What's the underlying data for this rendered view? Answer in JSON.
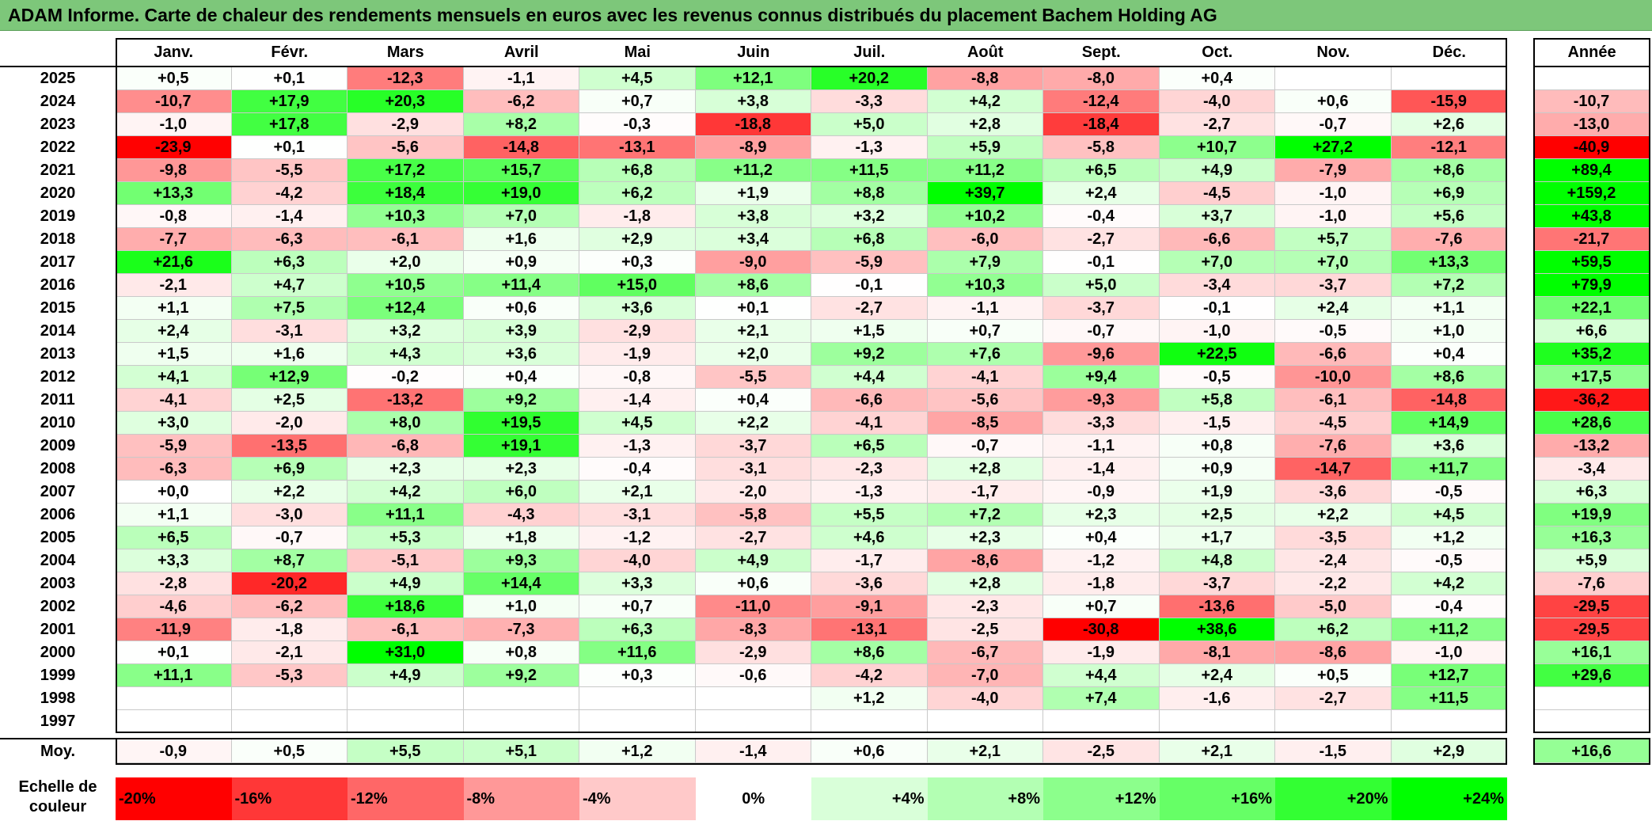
{
  "title": "ADAM Informe. Carte de chaleur des rendements mensuels en euros avec les revenus connus distribués du placement Bachem Holding AG",
  "chart_data": {
    "type": "heatmap",
    "months": [
      "Janv.",
      "Févr.",
      "Mars",
      "Avril",
      "Mai",
      "Juin",
      "Juil.",
      "Août",
      "Sept.",
      "Oct.",
      "Nov.",
      "Déc."
    ],
    "annual_header": "Année",
    "rows": [
      {
        "year": "2025",
        "values": [
          "+0,5",
          "+0,1",
          "-12,3",
          "-1,1",
          "+4,5",
          "+12,1",
          "+20,2",
          "-8,8",
          "-8,0",
          "+0,4",
          "",
          ""
        ],
        "annual": ""
      },
      {
        "year": "2024",
        "values": [
          "-10,7",
          "+17,9",
          "+20,3",
          "-6,2",
          "+0,7",
          "+3,8",
          "-3,3",
          "+4,2",
          "-12,4",
          "-4,0",
          "+0,6",
          "-15,9"
        ],
        "annual": "-10,7"
      },
      {
        "year": "2023",
        "values": [
          "-1,0",
          "+17,8",
          "-2,9",
          "+8,2",
          "-0,3",
          "-18,8",
          "+5,0",
          "+2,8",
          "-18,4",
          "-2,7",
          "-0,7",
          "+2,6"
        ],
        "annual": "-13,0"
      },
      {
        "year": "2022",
        "values": [
          "-23,9",
          "+0,1",
          "-5,6",
          "-14,8",
          "-13,1",
          "-8,9",
          "-1,3",
          "+5,9",
          "-5,8",
          "+10,7",
          "+27,2",
          "-12,1"
        ],
        "annual": "-40,9"
      },
      {
        "year": "2021",
        "values": [
          "-9,8",
          "-5,5",
          "+17,2",
          "+15,7",
          "+6,8",
          "+11,2",
          "+11,5",
          "+11,2",
          "+6,5",
          "+4,9",
          "-7,9",
          "+8,6"
        ],
        "annual": "+89,4"
      },
      {
        "year": "2020",
        "values": [
          "+13,3",
          "-4,2",
          "+18,4",
          "+19,0",
          "+6,2",
          "+1,9",
          "+8,8",
          "+39,7",
          "+2,4",
          "-4,5",
          "-1,0",
          "+6,9"
        ],
        "annual": "+159,2"
      },
      {
        "year": "2019",
        "values": [
          "-0,8",
          "-1,4",
          "+10,3",
          "+7,0",
          "-1,8",
          "+3,8",
          "+3,2",
          "+10,2",
          "-0,4",
          "+3,7",
          "-1,0",
          "+5,6"
        ],
        "annual": "+43,8"
      },
      {
        "year": "2018",
        "values": [
          "-7,7",
          "-6,3",
          "-6,1",
          "+1,6",
          "+2,9",
          "+3,4",
          "+6,8",
          "-6,0",
          "-2,7",
          "-6,6",
          "+5,7",
          "-7,6"
        ],
        "annual": "-21,7"
      },
      {
        "year": "2017",
        "values": [
          "+21,6",
          "+6,3",
          "+2,0",
          "+0,9",
          "+0,3",
          "-9,0",
          "-5,9",
          "+7,9",
          "-0,1",
          "+7,0",
          "+7,0",
          "+13,3"
        ],
        "annual": "+59,5"
      },
      {
        "year": "2016",
        "values": [
          "-2,1",
          "+4,7",
          "+10,5",
          "+11,4",
          "+15,0",
          "+8,6",
          "-0,1",
          "+10,3",
          "+5,0",
          "-3,4",
          "-3,7",
          "+7,2"
        ],
        "annual": "+79,9"
      },
      {
        "year": "2015",
        "values": [
          "+1,1",
          "+7,5",
          "+12,4",
          "+0,6",
          "+3,6",
          "+0,1",
          "-2,7",
          "-1,1",
          "-3,7",
          "-0,1",
          "+2,4",
          "+1,1"
        ],
        "annual": "+22,1"
      },
      {
        "year": "2014",
        "values": [
          "+2,4",
          "-3,1",
          "+3,2",
          "+3,9",
          "-2,9",
          "+2,1",
          "+1,5",
          "+0,7",
          "-0,7",
          "-1,0",
          "-0,5",
          "+1,0"
        ],
        "annual": "+6,6"
      },
      {
        "year": "2013",
        "values": [
          "+1,5",
          "+1,6",
          "+4,3",
          "+3,6",
          "-1,9",
          "+2,0",
          "+9,2",
          "+7,6",
          "-9,6",
          "+22,5",
          "-6,6",
          "+0,4"
        ],
        "annual": "+35,2"
      },
      {
        "year": "2012",
        "values": [
          "+4,1",
          "+12,9",
          "-0,2",
          "+0,4",
          "-0,8",
          "-5,5",
          "+4,4",
          "-4,1",
          "+9,4",
          "-0,5",
          "-10,0",
          "+8,6"
        ],
        "annual": "+17,5"
      },
      {
        "year": "2011",
        "values": [
          "-4,1",
          "+2,5",
          "-13,2",
          "+9,2",
          "-1,4",
          "+0,4",
          "-6,6",
          "-5,6",
          "-9,3",
          "+5,8",
          "-6,1",
          "-14,8"
        ],
        "annual": "-36,2"
      },
      {
        "year": "2010",
        "values": [
          "+3,0",
          "-2,0",
          "+8,0",
          "+19,5",
          "+4,5",
          "+2,2",
          "-4,1",
          "-8,5",
          "-3,3",
          "-1,5",
          "-4,5",
          "+14,9"
        ],
        "annual": "+28,6"
      },
      {
        "year": "2009",
        "values": [
          "-5,9",
          "-13,5",
          "-6,8",
          "+19,1",
          "-1,3",
          "-3,7",
          "+6,5",
          "-0,7",
          "-1,1",
          "+0,8",
          "-7,6",
          "+3,6"
        ],
        "annual": "-13,2"
      },
      {
        "year": "2008",
        "values": [
          "-6,3",
          "+6,9",
          "+2,3",
          "+2,3",
          "-0,4",
          "-3,1",
          "-2,3",
          "+2,8",
          "-1,4",
          "+0,9",
          "-14,7",
          "+11,7"
        ],
        "annual": "-3,4"
      },
      {
        "year": "2007",
        "values": [
          "+0,0",
          "+2,2",
          "+4,2",
          "+6,0",
          "+2,1",
          "-2,0",
          "-1,3",
          "-1,7",
          "-0,9",
          "+1,9",
          "-3,6",
          "-0,5"
        ],
        "annual": "+6,3"
      },
      {
        "year": "2006",
        "values": [
          "+1,1",
          "-3,0",
          "+11,1",
          "-4,3",
          "-3,1",
          "-5,8",
          "+5,5",
          "+7,2",
          "+2,3",
          "+2,5",
          "+2,2",
          "+4,5"
        ],
        "annual": "+19,9"
      },
      {
        "year": "2005",
        "values": [
          "+6,5",
          "-0,7",
          "+5,3",
          "+1,8",
          "-1,2",
          "-2,7",
          "+4,6",
          "+2,3",
          "+0,4",
          "+1,7",
          "-3,5",
          "+1,2"
        ],
        "annual": "+16,3"
      },
      {
        "year": "2004",
        "values": [
          "+3,3",
          "+8,7",
          "-5,1",
          "+9,3",
          "-4,0",
          "+4,9",
          "-1,7",
          "-8,6",
          "-1,2",
          "+4,8",
          "-2,4",
          "-0,5"
        ],
        "annual": "+5,9"
      },
      {
        "year": "2003",
        "values": [
          "-2,8",
          "-20,2",
          "+4,9",
          "+14,4",
          "+3,3",
          "+0,6",
          "-3,6",
          "+2,8",
          "-1,8",
          "-3,7",
          "-2,2",
          "+4,2"
        ],
        "annual": "-7,6"
      },
      {
        "year": "2002",
        "values": [
          "-4,6",
          "-6,2",
          "+18,6",
          "+1,0",
          "+0,7",
          "-11,0",
          "-9,1",
          "-2,3",
          "+0,7",
          "-13,6",
          "-5,0",
          "-0,4"
        ],
        "annual": "-29,5"
      },
      {
        "year": "2001",
        "values": [
          "-11,9",
          "-1,8",
          "-6,1",
          "-7,3",
          "+6,3",
          "-8,3",
          "-13,1",
          "-2,5",
          "-30,8",
          "+38,6",
          "+6,2",
          "+11,2"
        ],
        "annual": "-29,5"
      },
      {
        "year": "2000",
        "values": [
          "+0,1",
          "-2,1",
          "+31,0",
          "+0,8",
          "+11,6",
          "-2,9",
          "+8,6",
          "-6,7",
          "-1,9",
          "-8,1",
          "-8,6",
          "-1,0"
        ],
        "annual": "+16,1"
      },
      {
        "year": "1999",
        "values": [
          "+11,1",
          "-5,3",
          "+4,9",
          "+9,2",
          "+0,3",
          "-0,6",
          "-4,2",
          "-7,0",
          "+4,4",
          "+2,4",
          "+0,5",
          "+12,7"
        ],
        "annual": "+29,6"
      },
      {
        "year": "1998",
        "values": [
          "",
          "",
          "",
          "",
          "",
          "",
          "+1,2",
          "-4,0",
          "+7,4",
          "-1,6",
          "-2,7",
          "+11,5"
        ],
        "annual": ""
      },
      {
        "year": "1997",
        "values": [
          "",
          "",
          "",
          "",
          "",
          "",
          "",
          "",
          "",
          "",
          "",
          ""
        ],
        "annual": ""
      }
    ],
    "average": {
      "label": "Moy.",
      "values": [
        "-0,9",
        "+0,5",
        "+5,5",
        "+5,1",
        "+1,2",
        "-1,4",
        "+0,6",
        "+2,1",
        "-2,5",
        "+2,1",
        "-1,5",
        "+2,9"
      ],
      "annual": "+16,6"
    },
    "color_scale": {
      "label": "Echelle de couleur",
      "steps": [
        "-20%",
        "-16%",
        "-12%",
        "-8%",
        "-4%",
        "0%",
        "+4%",
        "+8%",
        "+12%",
        "+16%",
        "+20%",
        "+24%"
      ],
      "colors": [
        "#ff0000",
        "#ff3737",
        "#ff6767",
        "#ff9898",
        "#ffc9c9",
        "#ffffff",
        "#d9ffd9",
        "#b3ffb3",
        "#8cff8c",
        "#66ff66",
        "#33ff33",
        "#00ff00"
      ]
    }
  }
}
